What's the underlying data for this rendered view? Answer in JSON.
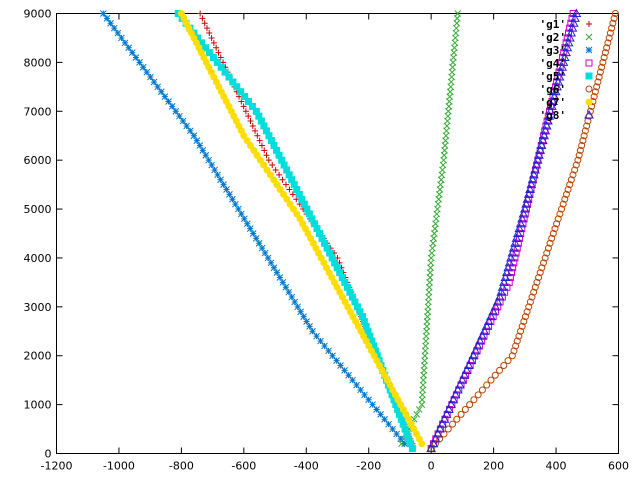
{
  "chart_data": {
    "type": "scatter",
    "title": "",
    "xlabel": "",
    "ylabel": "",
    "xlim": [
      -1200,
      600
    ],
    "ylim": [
      0,
      9000
    ],
    "xticks": [
      -1200,
      -1000,
      -800,
      -600,
      -400,
      -200,
      0,
      200,
      400,
      600
    ],
    "yticks": [
      0,
      1000,
      2000,
      3000,
      4000,
      5000,
      6000,
      7000,
      8000,
      9000
    ],
    "grid": false,
    "legend_position": "top-right",
    "series": [
      {
        "name": "'g1'",
        "marker": "plus",
        "color": "#cc0000",
        "points": [
          [
            -60,
            200
          ],
          [
            -300,
            4000
          ],
          [
            -520,
            6000
          ],
          [
            -740,
            9000
          ]
        ]
      },
      {
        "name": "'g2'",
        "marker": "cross",
        "color": "#33aa33",
        "points": [
          [
            -95,
            200
          ],
          [
            -30,
            1000
          ],
          [
            0,
            4000
          ],
          [
            40,
            6000
          ],
          [
            85,
            9000
          ]
        ]
      },
      {
        "name": "'g3'",
        "marker": "star",
        "color": "#0077cc",
        "points": [
          [
            -85,
            200
          ],
          [
            -380,
            2500
          ],
          [
            -760,
            6500
          ],
          [
            -1050,
            9000
          ]
        ]
      },
      {
        "name": "'g4'",
        "marker": "square-open",
        "color": "#cc00cc",
        "points": [
          [
            0,
            100
          ],
          [
            250,
            3500
          ],
          [
            360,
            6500
          ],
          [
            455,
            9000
          ]
        ]
      },
      {
        "name": "'g5'",
        "marker": "square-filled",
        "color": "#00dddd",
        "points": [
          [
            -60,
            100
          ],
          [
            -220,
            2800
          ],
          [
            -560,
            7000
          ],
          [
            -810,
            9000
          ]
        ]
      },
      {
        "name": "'g6'",
        "marker": "circle-open",
        "color": "#bb4400",
        "points": [
          [
            0,
            100
          ],
          [
            260,
            2000
          ],
          [
            470,
            6000
          ],
          [
            590,
            9000
          ]
        ]
      },
      {
        "name": "'g7'",
        "marker": "circle-filled",
        "color": "#ffdd00",
        "points": [
          [
            -30,
            200
          ],
          [
            -420,
            4800
          ],
          [
            -600,
            6500
          ],
          [
            -800,
            9000
          ]
        ]
      },
      {
        "name": "'g8'",
        "marker": "triangle-open",
        "color": "#2222cc",
        "points": [
          [
            0,
            100
          ],
          [
            220,
            3200
          ],
          [
            300,
            5000
          ],
          [
            465,
            9000
          ]
        ]
      }
    ]
  }
}
